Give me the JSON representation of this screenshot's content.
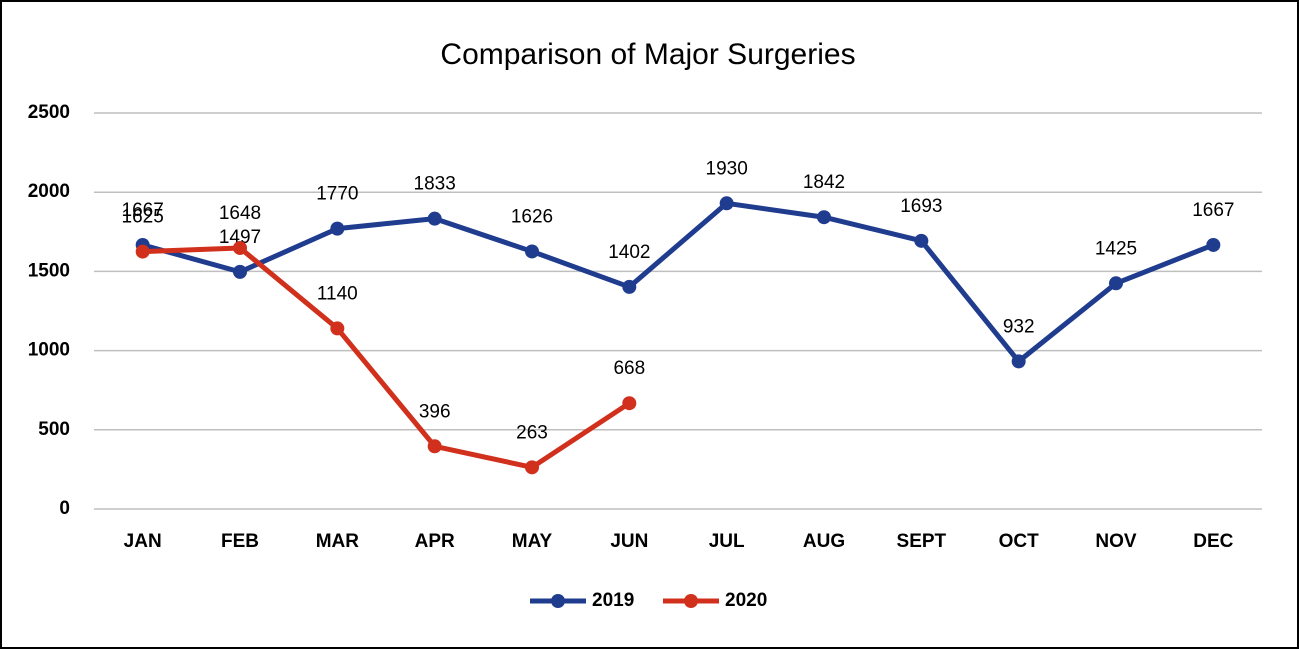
{
  "chart_data": {
    "type": "line",
    "title": "Comparison of Major Surgeries",
    "categories": [
      "JAN",
      "FEB",
      "MAR",
      "APR",
      "MAY",
      "JUN",
      "JUL",
      "AUG",
      "SEPT",
      "OCT",
      "NOV",
      "DEC"
    ],
    "series": [
      {
        "name": "2019",
        "color": "#1f3c8f",
        "values": [
          1667,
          1497,
          1770,
          1833,
          1626,
          1402,
          1930,
          1842,
          1693,
          932,
          1425,
          1667
        ]
      },
      {
        "name": "2020",
        "color": "#d0301c",
        "values": [
          1625,
          1648,
          1140,
          396,
          263,
          668,
          null,
          null,
          null,
          null,
          null,
          null
        ]
      }
    ],
    "ylim": [
      0,
      2500
    ],
    "yticks": [
      0,
      500,
      1000,
      1500,
      2000,
      2500
    ],
    "grid": true,
    "legend": "bottom"
  }
}
